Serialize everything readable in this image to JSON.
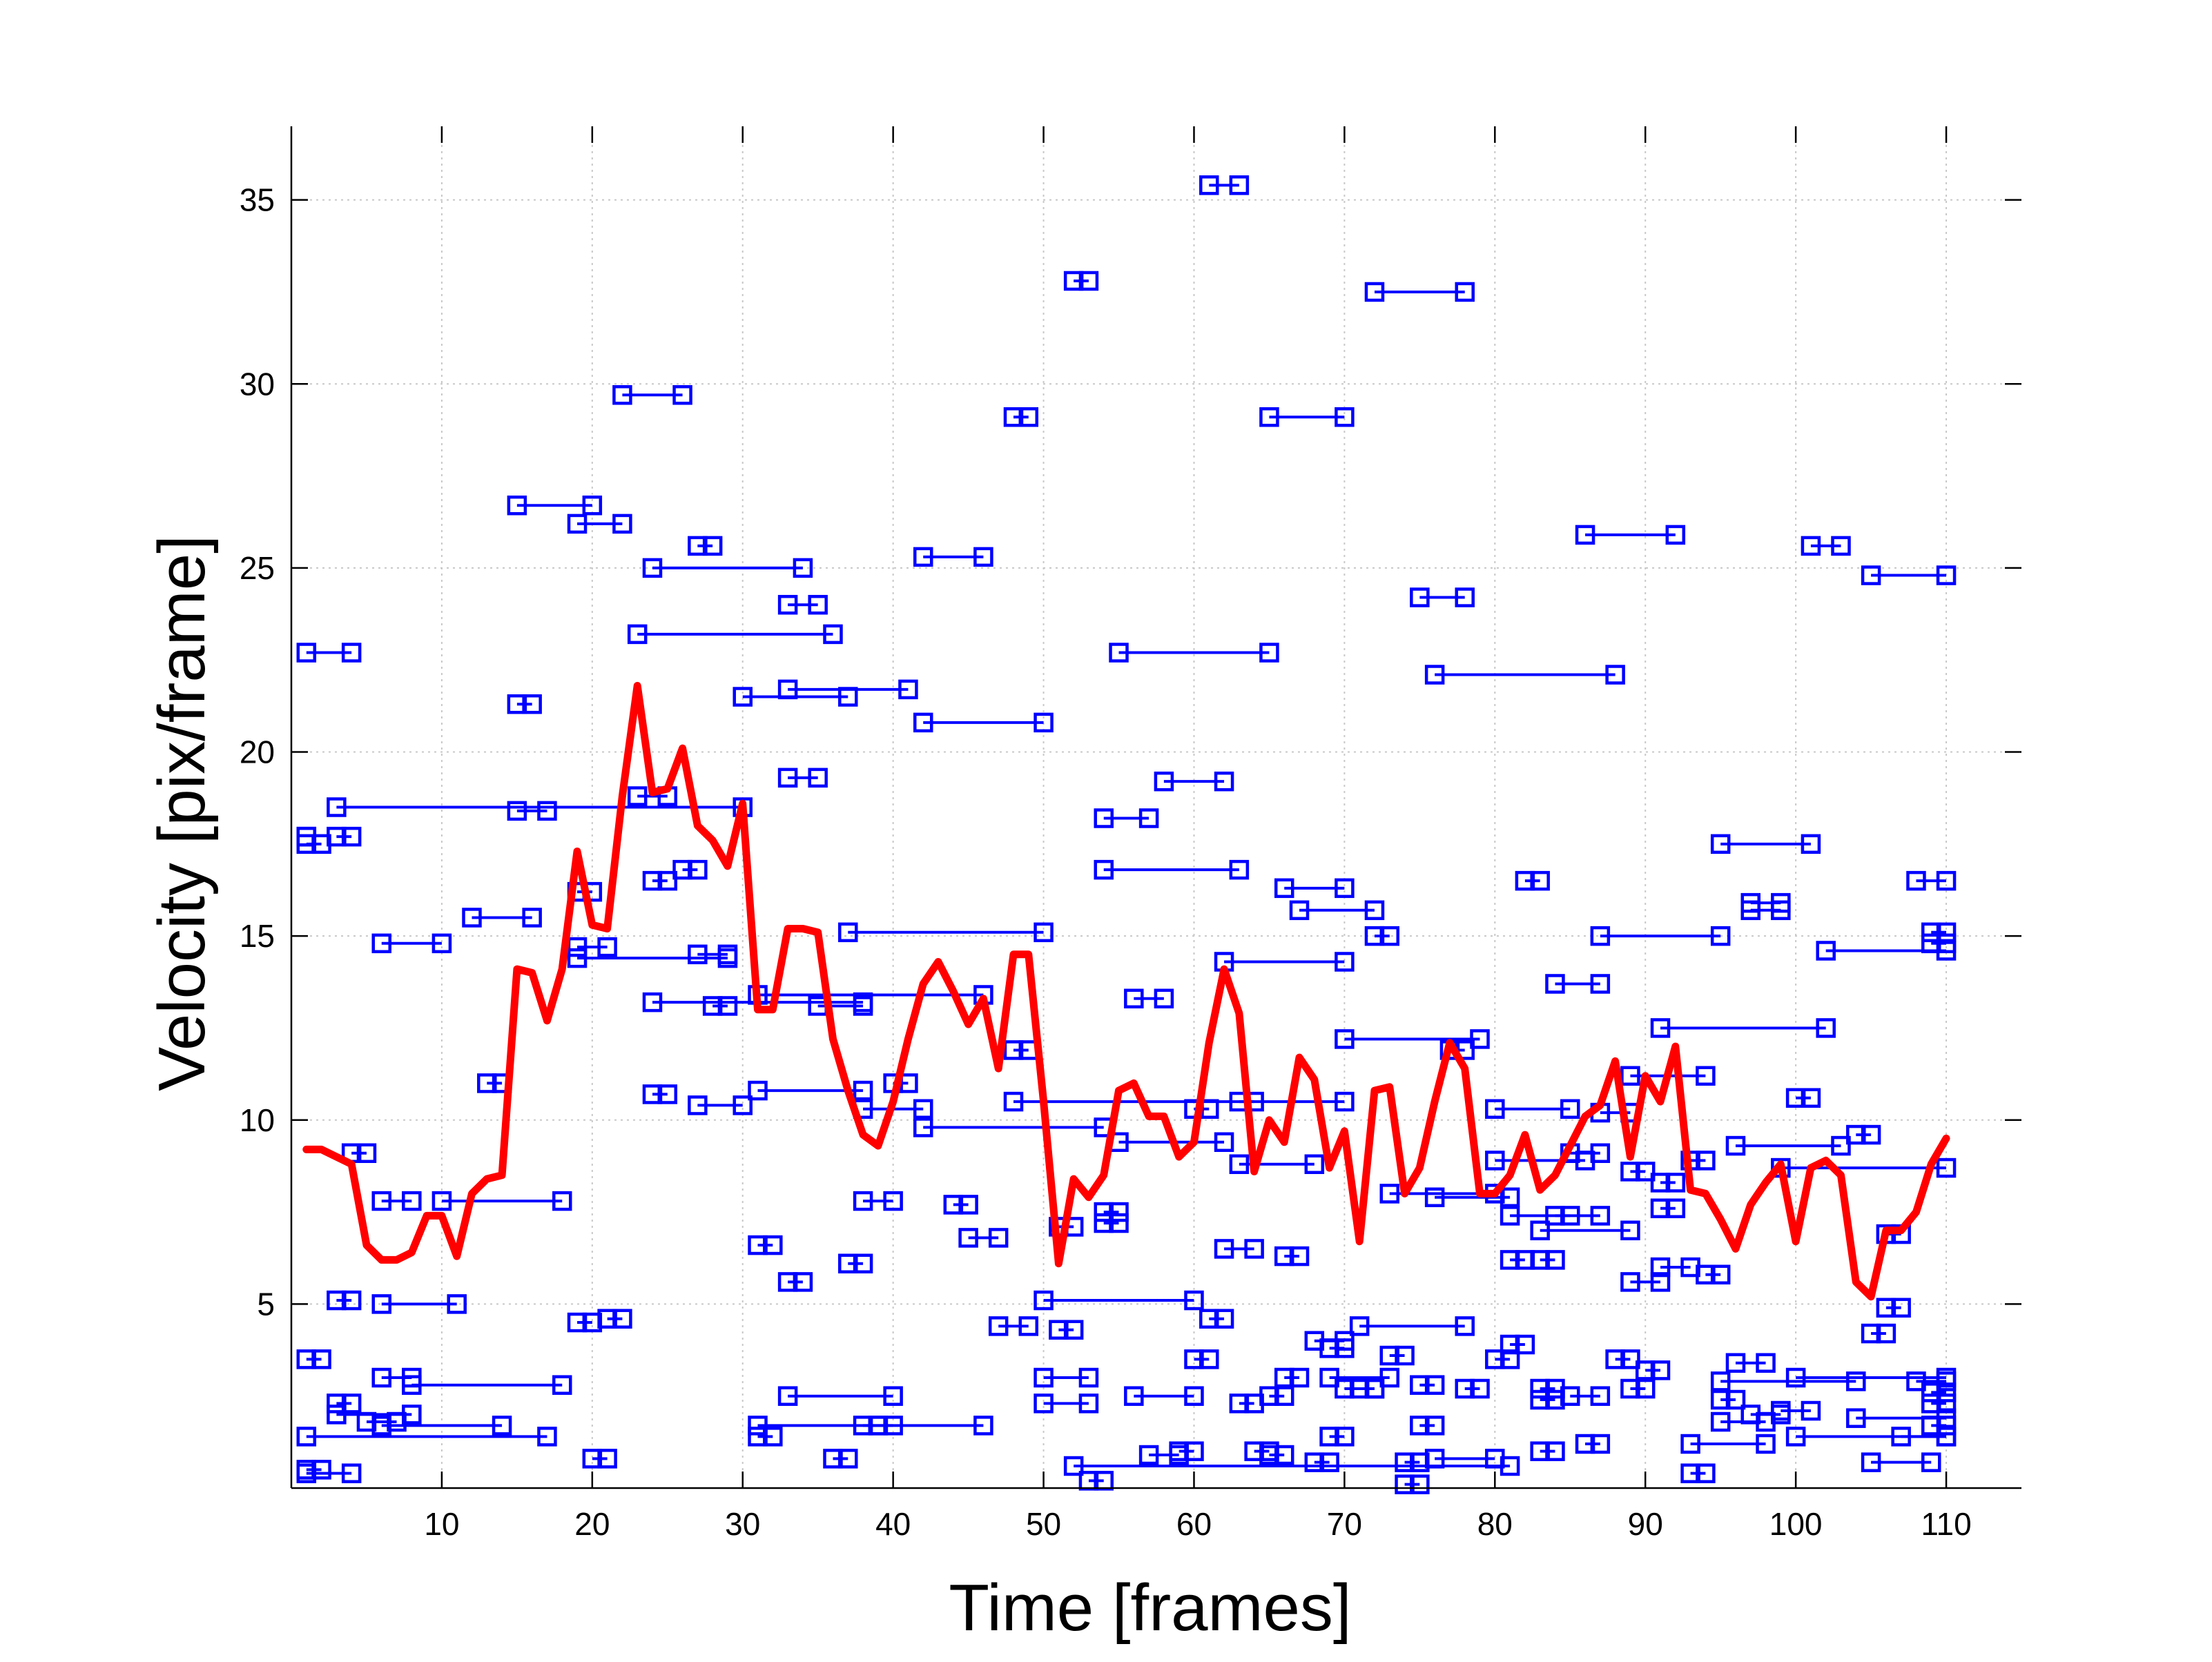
{
  "chart_data": {
    "type": "line",
    "xlabel": "Time [frames]",
    "ylabel": "Velocity [pix/frame]",
    "xlim": [
      0,
      115
    ],
    "ylim": [
      0,
      37
    ],
    "xticks": [
      10,
      20,
      30,
      40,
      50,
      60,
      70,
      80,
      90,
      100,
      110
    ],
    "yticks": [
      5,
      10,
      15,
      20,
      25,
      30,
      35
    ],
    "grid": true,
    "colors": {
      "segments": "#0000ff",
      "mean": "#ff0000"
    },
    "mean_series": {
      "x": [
        1,
        2,
        3,
        4,
        5,
        6,
        7,
        8,
        9,
        10,
        11,
        12,
        13,
        14,
        15,
        16,
        17,
        18,
        19,
        20,
        21,
        22,
        23,
        24,
        25,
        26,
        27,
        28,
        29,
        30,
        31,
        32,
        33,
        34,
        35,
        36,
        37,
        38,
        39,
        40,
        41,
        42,
        43,
        44,
        45,
        46,
        47,
        48,
        49,
        50,
        51,
        52,
        53,
        54,
        55,
        56,
        57,
        58,
        59,
        60,
        61,
        62,
        63,
        64,
        65,
        66,
        67,
        68,
        69,
        70,
        71,
        72,
        73,
        74,
        75,
        76,
        77,
        78,
        79,
        80,
        81,
        82,
        83,
        84,
        85,
        86,
        87,
        88,
        89,
        90,
        91,
        92,
        93,
        94,
        95,
        96,
        97,
        98,
        99,
        100,
        101,
        102,
        103,
        104,
        105,
        106,
        107,
        108,
        109,
        110
      ],
      "y": [
        9.2,
        9.2,
        9.0,
        8.8,
        6.6,
        6.2,
        6.2,
        6.4,
        7.4,
        7.4,
        6.3,
        8.0,
        8.4,
        8.5,
        14.1,
        14.0,
        12.7,
        14.1,
        17.3,
        15.3,
        15.2,
        18.8,
        21.8,
        18.9,
        19.0,
        20.1,
        18.0,
        17.6,
        16.9,
        18.6,
        13.0,
        13.0,
        15.2,
        15.2,
        15.1,
        12.2,
        10.8,
        9.6,
        9.3,
        10.5,
        12.2,
        13.7,
        14.3,
        13.5,
        12.6,
        13.3,
        11.4,
        14.5,
        14.5,
        10.5,
        6.1,
        8.4,
        7.9,
        8.5,
        10.8,
        11.0,
        10.1,
        10.1,
        9.0,
        9.4,
        12.1,
        14.1,
        12.9,
        8.6,
        10.0,
        9.4,
        11.7,
        11.1,
        8.7,
        9.7,
        6.7,
        10.8,
        10.9,
        8.0,
        8.7,
        10.5,
        12.1,
        11.4,
        8.0,
        8.0,
        8.5,
        9.6,
        8.1,
        8.5,
        9.3,
        10.1,
        10.4,
        11.6,
        9.0,
        11.2,
        10.5,
        12.0,
        8.1,
        8.0,
        7.3,
        6.5,
        7.7,
        8.3,
        8.8,
        6.7,
        8.7,
        8.9,
        8.5,
        5.6,
        5.2,
        7.0,
        7.0,
        7.5,
        8.8,
        9.5
      ]
    },
    "segments": [
      [
        1,
        17.7,
        1,
        17.7
      ],
      [
        1,
        17.5,
        2,
        17.5
      ],
      [
        1,
        22.7,
        4,
        22.7
      ],
      [
        3,
        17.7,
        4,
        17.7
      ],
      [
        3,
        18.5,
        30,
        18.5
      ],
      [
        1,
        3.5,
        2,
        3.5
      ],
      [
        1,
        1.4,
        17,
        1.4
      ],
      [
        1,
        0.5,
        2,
        0.5
      ],
      [
        1,
        0.4,
        4,
        0.4
      ],
      [
        3,
        5.1,
        4,
        5.1
      ],
      [
        3,
        2.3,
        4,
        2.3
      ],
      [
        3,
        2.0,
        8,
        2.0
      ],
      [
        4,
        9.1,
        5,
        9.1
      ],
      [
        5,
        1.8,
        7,
        1.8
      ],
      [
        6,
        1.7,
        14,
        1.7
      ],
      [
        6,
        7.8,
        8,
        7.8
      ],
      [
        6,
        3.0,
        8,
        3.0
      ],
      [
        8,
        2.8,
        18,
        2.8
      ],
      [
        6,
        14.8,
        10,
        14.8
      ],
      [
        6,
        5.0,
        11,
        5.0
      ],
      [
        10,
        7.8,
        18,
        7.8
      ],
      [
        12,
        15.5,
        16,
        15.5
      ],
      [
        13,
        11.0,
        14,
        11.0
      ],
      [
        15,
        21.3,
        16,
        21.3
      ],
      [
        15,
        26.7,
        20,
        26.7
      ],
      [
        15,
        18.4,
        17,
        18.4
      ],
      [
        19,
        26.2,
        22,
        26.2
      ],
      [
        19,
        16.2,
        20,
        16.2
      ],
      [
        19,
        14.7,
        21,
        14.7
      ],
      [
        19,
        14.4,
        29,
        14.4
      ],
      [
        19,
        4.5,
        20,
        4.5
      ],
      [
        20,
        0.8,
        21,
        0.8
      ],
      [
        21,
        4.6,
        22,
        4.6
      ],
      [
        22,
        29.7,
        26,
        29.7
      ],
      [
        23,
        23.2,
        36,
        23.2
      ],
      [
        23,
        18.8,
        25,
        18.8
      ],
      [
        24,
        25.0,
        34,
        25.0
      ],
      [
        24,
        16.5,
        25,
        16.5
      ],
      [
        24,
        13.2,
        38,
        13.2
      ],
      [
        24,
        10.7,
        25,
        10.7
      ],
      [
        26,
        16.8,
        27,
        16.8
      ],
      [
        27,
        25.6,
        28,
        25.6
      ],
      [
        27,
        14.5,
        29,
        14.5
      ],
      [
        27,
        10.4,
        30,
        10.4
      ],
      [
        28,
        13.1,
        29,
        13.1
      ],
      [
        30,
        21.5,
        37,
        21.5
      ],
      [
        31,
        13.4,
        46,
        13.4
      ],
      [
        31,
        10.8,
        38,
        10.8
      ],
      [
        31,
        6.6,
        32,
        6.6
      ],
      [
        31,
        1.7,
        46,
        1.7
      ],
      [
        31,
        1.4,
        32,
        1.4
      ],
      [
        33,
        24.0,
        35,
        24.0
      ],
      [
        33,
        21.7,
        41,
        21.7
      ],
      [
        33,
        19.3,
        35,
        19.3
      ],
      [
        33,
        5.6,
        34,
        5.6
      ],
      [
        33,
        2.5,
        40,
        2.5
      ],
      [
        35,
        13.1,
        38,
        13.1
      ],
      [
        36,
        0.8,
        37,
        0.8
      ],
      [
        37,
        15.1,
        50,
        15.1
      ],
      [
        37,
        6.1,
        38,
        6.1
      ],
      [
        38,
        10.3,
        42,
        10.3
      ],
      [
        38,
        7.8,
        40,
        7.8
      ],
      [
        38,
        1.7,
        39,
        1.7
      ],
      [
        39,
        1.7,
        40,
        1.7
      ],
      [
        40,
        11.0,
        41,
        11.0
      ],
      [
        42,
        25.3,
        46,
        25.3
      ],
      [
        42,
        20.8,
        50,
        20.8
      ],
      [
        42,
        9.8,
        54,
        9.8
      ],
      [
        44,
        7.7,
        45,
        7.7
      ],
      [
        45,
        6.8,
        47,
        6.8
      ],
      [
        47,
        4.4,
        49,
        4.4
      ],
      [
        48,
        29.1,
        49,
        29.1
      ],
      [
        48,
        11.9,
        49,
        11.9
      ],
      [
        48,
        10.5,
        70,
        10.5
      ],
      [
        50,
        5.1,
        60,
        5.1
      ],
      [
        50,
        3.0,
        53,
        3.0
      ],
      [
        50,
        2.3,
        53,
        2.3
      ],
      [
        51,
        7.1,
        52,
        7.1
      ],
      [
        51,
        4.3,
        52,
        4.3
      ],
      [
        52,
        0.6,
        81,
        0.6
      ],
      [
        52,
        32.8,
        53,
        32.8
      ],
      [
        53,
        0.2,
        54,
        0.2
      ],
      [
        54,
        18.2,
        57,
        18.2
      ],
      [
        54,
        16.8,
        63,
        16.8
      ],
      [
        54,
        7.5,
        55,
        7.5
      ],
      [
        54,
        7.2,
        55,
        7.2
      ],
      [
        55,
        22.7,
        65,
        22.7
      ],
      [
        55,
        9.4,
        62,
        9.4
      ],
      [
        56,
        13.3,
        58,
        13.3
      ],
      [
        56,
        2.5,
        60,
        2.5
      ],
      [
        57,
        0.9,
        59,
        0.9
      ],
      [
        58,
        19.2,
        62,
        19.2
      ],
      [
        59,
        1.0,
        60,
        1.0
      ],
      [
        60,
        10.3,
        61,
        10.3
      ],
      [
        60,
        3.5,
        61,
        3.5
      ],
      [
        61,
        35.4,
        63,
        35.4
      ],
      [
        61,
        4.6,
        62,
        4.6
      ],
      [
        62,
        14.3,
        70,
        14.3
      ],
      [
        62,
        6.5,
        64,
        6.5
      ],
      [
        63,
        10.5,
        64,
        10.5
      ],
      [
        63,
        8.8,
        68,
        8.8
      ],
      [
        63,
        2.3,
        64,
        2.3
      ],
      [
        64,
        1.0,
        65,
        1.0
      ],
      [
        65,
        29.1,
        70,
        29.1
      ],
      [
        65,
        2.5,
        66,
        2.5
      ],
      [
        65,
        0.9,
        66,
        0.9
      ],
      [
        66,
        16.3,
        70,
        16.3
      ],
      [
        66,
        6.3,
        67,
        6.3
      ],
      [
        66,
        3.0,
        67,
        3.0
      ],
      [
        67,
        15.7,
        72,
        15.7
      ],
      [
        68,
        4.0,
        70,
        4.0
      ],
      [
        68,
        0.7,
        69,
        0.7
      ],
      [
        69,
        3.8,
        70,
        3.8
      ],
      [
        69,
        3.0,
        73,
        3.0
      ],
      [
        69,
        1.4,
        70,
        1.4
      ],
      [
        70,
        12.2,
        79,
        12.2
      ],
      [
        70,
        2.7,
        72,
        2.7
      ],
      [
        71,
        4.4,
        78,
        4.4
      ],
      [
        71,
        2.7,
        72,
        2.7
      ],
      [
        72,
        32.5,
        78,
        32.5
      ],
      [
        72,
        15.0,
        73,
        15.0
      ],
      [
        73,
        8.0,
        80,
        8.0
      ],
      [
        73,
        3.6,
        74,
        3.6
      ],
      [
        74,
        0.7,
        75,
        0.7
      ],
      [
        74,
        0.1,
        75,
        0.1
      ],
      [
        75,
        24.2,
        78,
        24.2
      ],
      [
        75,
        2.8,
        76,
        2.8
      ],
      [
        75,
        1.7,
        76,
        1.7
      ],
      [
        76,
        22.1,
        88,
        22.1
      ],
      [
        76,
        7.9,
        81,
        7.9
      ],
      [
        76,
        0.8,
        80,
        0.8
      ],
      [
        77,
        11.9,
        78,
        11.9
      ],
      [
        78,
        2.7,
        79,
        2.7
      ],
      [
        80,
        10.3,
        85,
        10.3
      ],
      [
        80,
        8.9,
        86,
        8.9
      ],
      [
        80,
        3.5,
        81,
        3.5
      ],
      [
        81,
        7.4,
        87,
        7.4
      ],
      [
        81,
        6.2,
        82,
        6.2
      ],
      [
        81,
        3.9,
        82,
        3.9
      ],
      [
        82,
        16.5,
        83,
        16.5
      ],
      [
        83,
        7.0,
        89,
        7.0
      ],
      [
        83,
        6.2,
        84,
        6.2
      ],
      [
        83,
        2.7,
        84,
        2.7
      ],
      [
        83,
        2.4,
        84,
        2.4
      ],
      [
        83,
        1.0,
        84,
        1.0
      ],
      [
        84,
        13.7,
        87,
        13.7
      ],
      [
        84,
        7.4,
        85,
        7.4
      ],
      [
        85,
        9.1,
        87,
        9.1
      ],
      [
        85,
        2.5,
        87,
        2.5
      ],
      [
        86,
        25.9,
        92,
        25.9
      ],
      [
        86,
        1.2,
        87,
        1.2
      ],
      [
        87,
        15.0,
        95,
        15.0
      ],
      [
        87,
        10.2,
        89,
        10.2
      ],
      [
        88,
        3.5,
        89,
        3.5
      ],
      [
        89,
        11.2,
        94,
        11.2
      ],
      [
        89,
        8.6,
        90,
        8.6
      ],
      [
        89,
        5.6,
        91,
        5.6
      ],
      [
        89,
        2.7,
        90,
        2.7
      ],
      [
        90,
        3.2,
        91,
        3.2
      ],
      [
        91,
        12.5,
        102,
        12.5
      ],
      [
        91,
        8.3,
        92,
        8.3
      ],
      [
        91,
        7.6,
        92,
        7.6
      ],
      [
        91,
        6.0,
        93,
        6.0
      ],
      [
        93,
        8.9,
        94,
        8.9
      ],
      [
        93,
        1.2,
        98,
        1.2
      ],
      [
        93,
        0.4,
        94,
        0.4
      ],
      [
        94,
        5.8,
        95,
        5.8
      ],
      [
        95,
        17.5,
        101,
        17.5
      ],
      [
        95,
        2.9,
        104,
        2.9
      ],
      [
        95,
        2.4,
        96,
        2.4
      ],
      [
        95,
        1.8,
        98,
        1.8
      ],
      [
        96,
        9.3,
        103,
        9.3
      ],
      [
        96,
        3.4,
        98,
        3.4
      ],
      [
        97,
        15.9,
        99,
        15.9
      ],
      [
        97,
        15.7,
        99,
        15.7
      ],
      [
        97,
        2.0,
        99,
        2.0
      ],
      [
        99,
        8.7,
        110,
        8.7
      ],
      [
        99,
        2.1,
        101,
        2.1
      ],
      [
        100,
        10.6,
        101,
        10.6
      ],
      [
        100,
        3.0,
        110,
        3.0
      ],
      [
        100,
        1.4,
        110,
        1.4
      ],
      [
        101,
        25.6,
        103,
        25.6
      ],
      [
        102,
        14.6,
        110,
        14.6
      ],
      [
        104,
        9.6,
        105,
        9.6
      ],
      [
        104,
        1.9,
        110,
        1.9
      ],
      [
        105,
        24.8,
        110,
        24.8
      ],
      [
        105,
        4.2,
        106,
        4.2
      ],
      [
        105,
        0.7,
        109,
        0.7
      ],
      [
        106,
        6.9,
        107,
        6.9
      ],
      [
        106,
        4.9,
        107,
        4.9
      ],
      [
        107,
        1.4,
        110,
        1.4
      ],
      [
        108,
        16.5,
        110,
        16.5
      ],
      [
        108,
        2.9,
        110,
        2.9
      ],
      [
        109,
        15.1,
        110,
        15.1
      ],
      [
        109,
        14.8,
        110,
        14.8
      ],
      [
        109,
        2.6,
        110,
        2.6
      ],
      [
        109,
        2.3,
        110,
        2.3
      ],
      [
        109,
        1.7,
        110,
        1.7
      ]
    ]
  }
}
